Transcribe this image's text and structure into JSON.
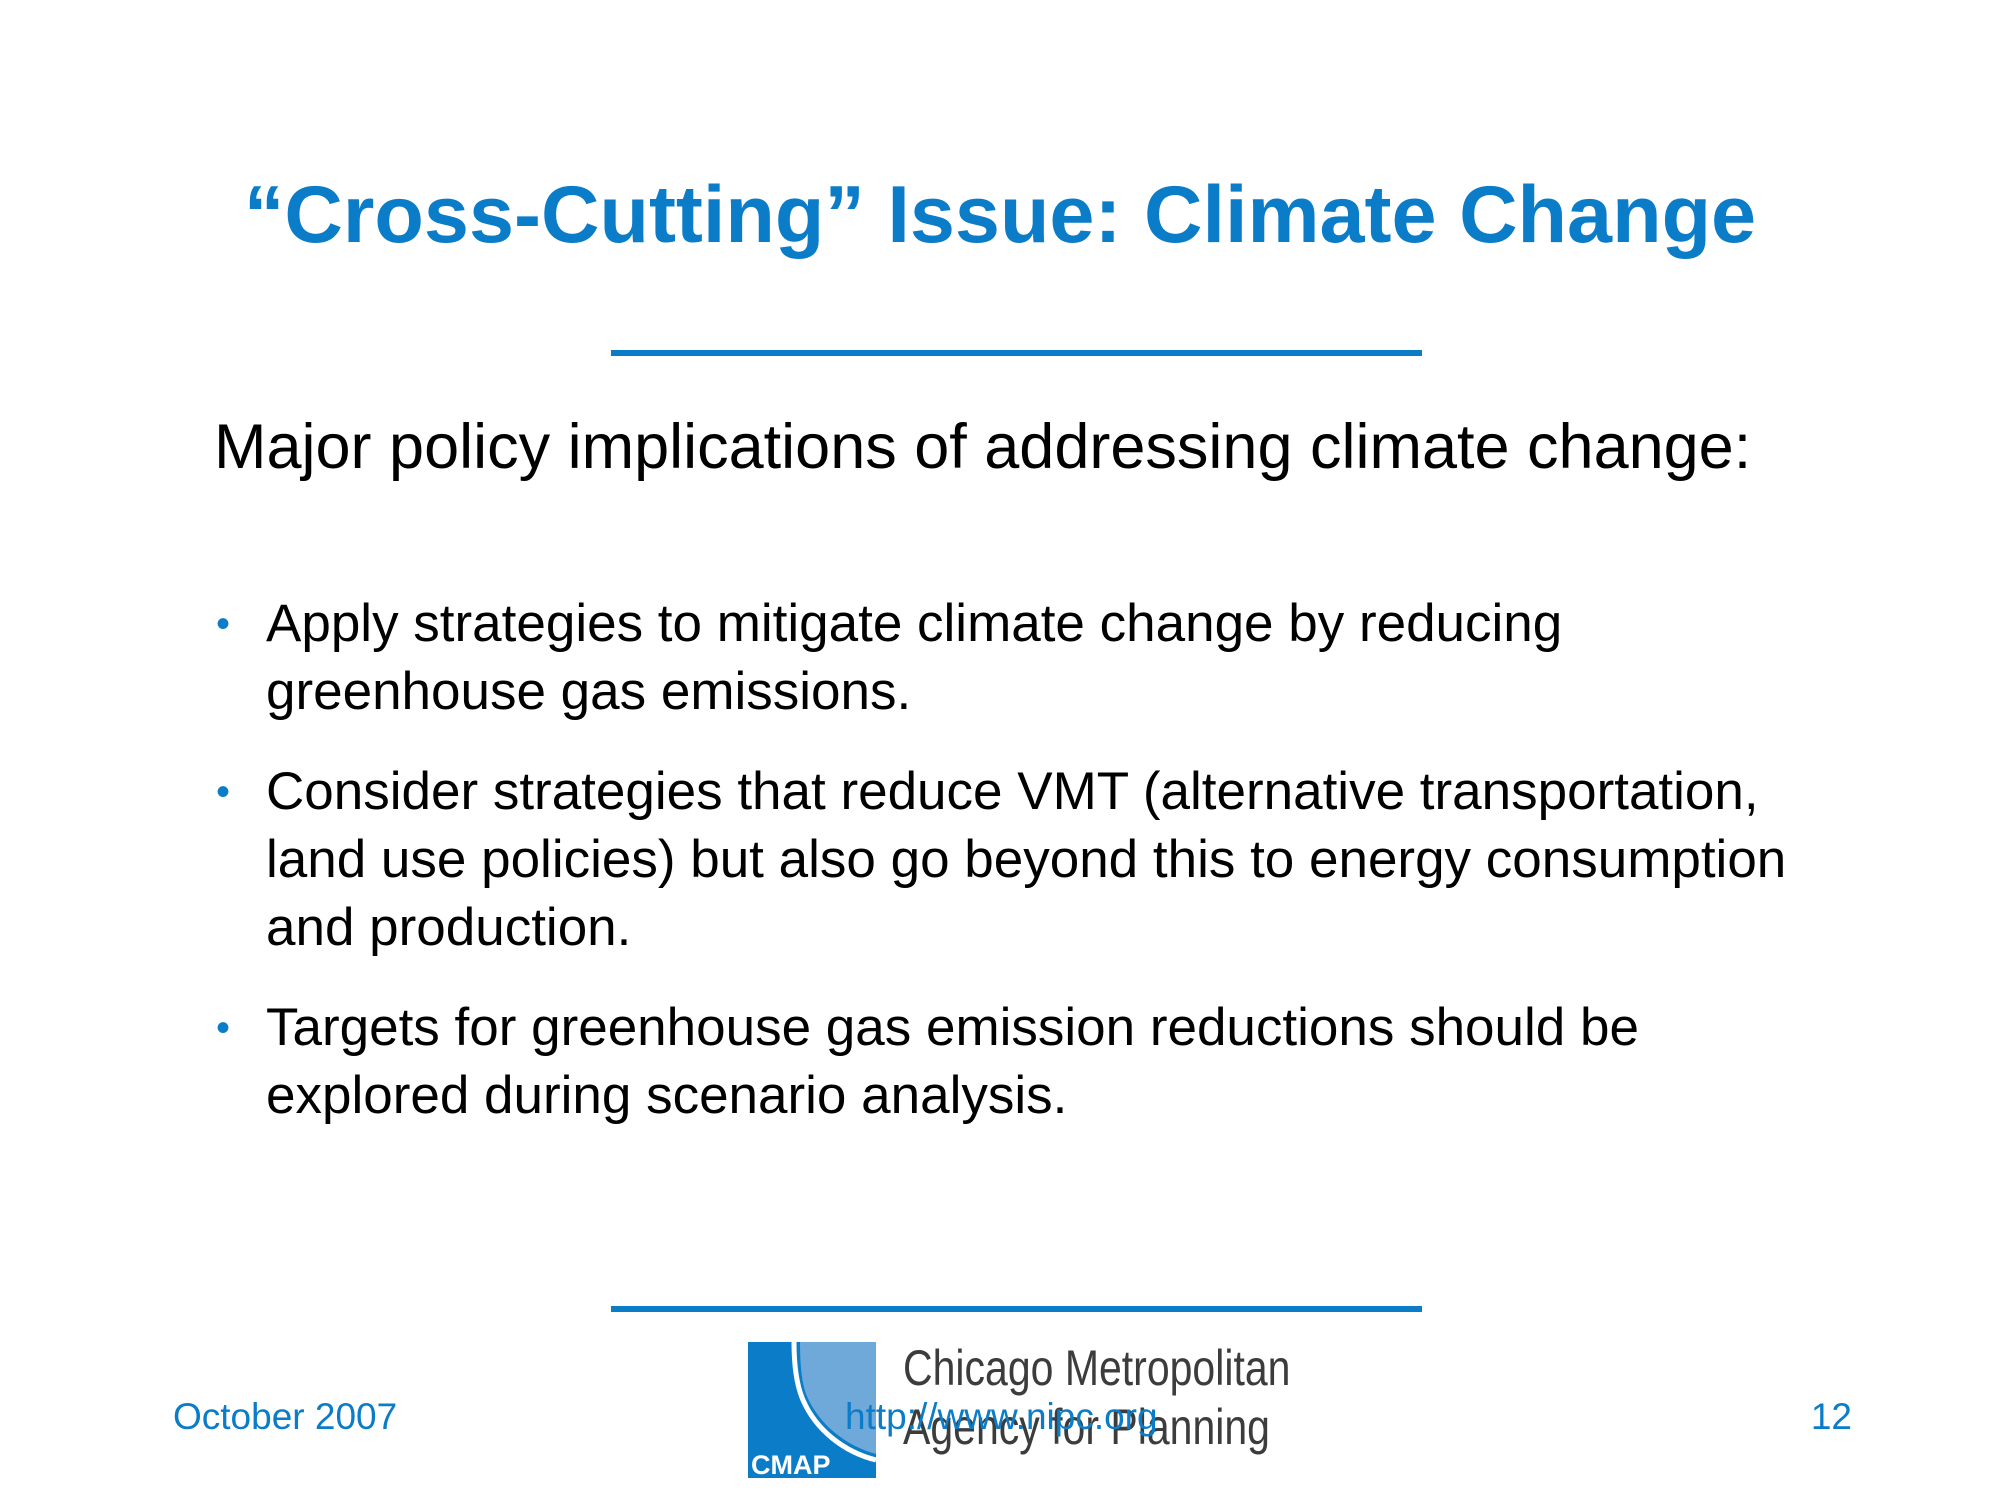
{
  "slide": {
    "title": "“Cross-Cutting” Issue: Climate Change",
    "intro": "Major policy implications of addressing climate change:",
    "bullets": [
      "Apply strategies to mitigate climate change by reducing greenhouse gas emissions.",
      "Consider strategies that reduce VMT (alternative transportation, land use policies) but also go beyond this to energy consumption and production.",
      "Targets for greenhouse gas emission reductions should be explored during scenario analysis."
    ]
  },
  "footer": {
    "date": "October 2007",
    "url": "http://www.nipc.org",
    "page_number": "12"
  },
  "logo": {
    "line1": "Chicago Metropolitan",
    "line2": "Agency for Planning",
    "mark_text": "CMAP"
  },
  "colors": {
    "accent": "#0b7dc8",
    "logo_light_blue": "#6fa9d9",
    "logo_dark_blue": "#0b7dc8",
    "logo_text": "#3c3c3c"
  },
  "icons": {
    "bullet": "bullet-dot-icon"
  }
}
